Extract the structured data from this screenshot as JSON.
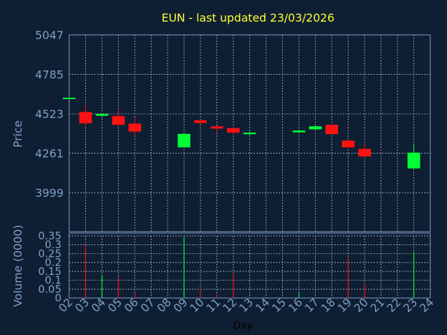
{
  "chart_data": [
    {
      "type": "candlestick",
      "title": "EUN - last updated 23/03/2026",
      "ylabel": "Price",
      "yticks": [
        5047,
        4785,
        4523,
        4261,
        3999
      ],
      "ylim": [
        3740,
        5047
      ],
      "grid": true,
      "xlim": [
        2,
        24
      ],
      "up_color": "#00ff33",
      "down_color": "#ff1111",
      "candles": [
        {
          "day": 2,
          "open": 4630,
          "close": 4630,
          "high": 4630,
          "low": 4630
        },
        {
          "day": 3,
          "open": 4535,
          "close": 4460,
          "high": 4580,
          "low": 4445
        },
        {
          "day": 4,
          "open": 4510,
          "close": 4522,
          "high": 4522,
          "low": 4495
        },
        {
          "day": 5,
          "open": 4508,
          "close": 4450,
          "high": 4550,
          "low": 4440
        },
        {
          "day": 6,
          "open": 4458,
          "close": 4405,
          "high": 4500,
          "low": 4385
        },
        {
          "day": 9,
          "open": 4300,
          "close": 4390,
          "high": 4390,
          "low": 4300
        },
        {
          "day": 10,
          "open": 4480,
          "close": 4462,
          "high": 4480,
          "low": 4455
        },
        {
          "day": 11,
          "open": 4440,
          "close": 4425,
          "high": 4445,
          "low": 4400
        },
        {
          "day": 12,
          "open": 4428,
          "close": 4398,
          "high": 4435,
          "low": 4390
        },
        {
          "day": 13,
          "open": 4388,
          "close": 4398,
          "high": 4405,
          "low": 4372
        },
        {
          "day": 16,
          "open": 4400,
          "close": 4412,
          "high": 4418,
          "low": 4395
        },
        {
          "day": 17,
          "open": 4420,
          "close": 4440,
          "high": 4455,
          "low": 4415
        },
        {
          "day": 18,
          "open": 4450,
          "close": 4388,
          "high": 4455,
          "low": 4385
        },
        {
          "day": 19,
          "open": 4345,
          "close": 4300,
          "high": 4355,
          "low": 4295
        },
        {
          "day": 20,
          "open": 4290,
          "close": 4240,
          "high": 4325,
          "low": 4235
        },
        {
          "day": 23,
          "open": 4160,
          "close": 4265,
          "high": 4318,
          "low": 4160
        }
      ]
    },
    {
      "type": "bar",
      "ylabel": "Volume (0000)",
      "xlabel": "Day",
      "ylim": [
        0,
        0.35
      ],
      "yticks": [
        "0.35",
        "0.3",
        "0.25",
        "0.2",
        "0.15",
        "0.1",
        "0.05",
        "0"
      ],
      "xticks": [
        "02",
        "03",
        "04",
        "05",
        "06",
        "07",
        "08",
        "09",
        "10",
        "11",
        "12",
        "13",
        "14",
        "15",
        "16",
        "17",
        "18",
        "19",
        "20",
        "21",
        "22",
        "23",
        "24"
      ],
      "grid": true,
      "bars": [
        {
          "day": 3,
          "value": 0.3,
          "color": "red"
        },
        {
          "day": 4,
          "value": 0.13,
          "color": "green"
        },
        {
          "day": 5,
          "value": 0.12,
          "color": "red"
        },
        {
          "day": 6,
          "value": 0.03,
          "color": "red"
        },
        {
          "day": 9,
          "value": 0.34,
          "color": "green"
        },
        {
          "day": 10,
          "value": 0.05,
          "color": "red"
        },
        {
          "day": 11,
          "value": 0.02,
          "color": "red"
        },
        {
          "day": 12,
          "value": 0.14,
          "color": "red"
        },
        {
          "day": 16,
          "value": 0.03,
          "color": "green"
        },
        {
          "day": 19,
          "value": 0.23,
          "color": "red"
        },
        {
          "day": 20,
          "value": 0.08,
          "color": "red"
        },
        {
          "day": 23,
          "value": 0.26,
          "color": "green"
        }
      ]
    }
  ]
}
